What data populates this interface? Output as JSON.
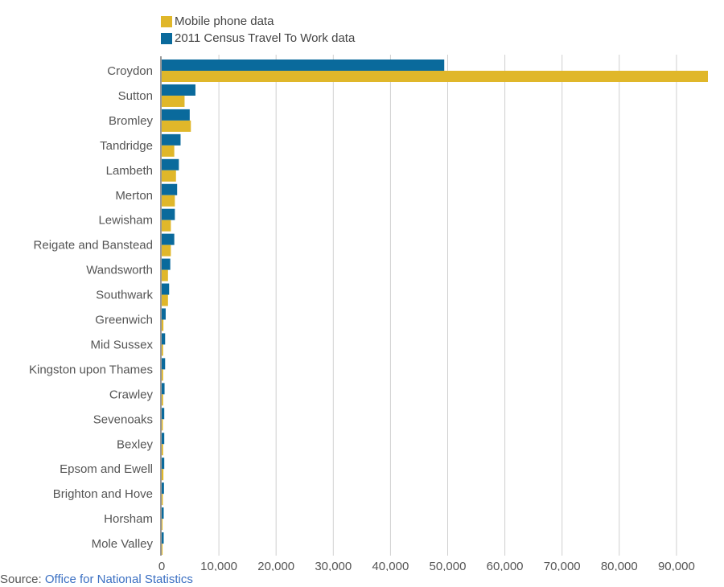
{
  "chart_data": {
    "type": "bar",
    "orientation": "horizontal",
    "categories": [
      "Croydon",
      "Sutton",
      "Bromley",
      "Tandridge",
      "Lambeth",
      "Merton",
      "Lewisham",
      "Reigate and Banstead",
      "Wandsworth",
      "Southwark",
      "Greenwich",
      "Mid Sussex",
      "Kingston upon Thames",
      "Crawley",
      "Sevenoaks",
      "Bexley",
      "Epsom and Ewell",
      "Brighton and Hove",
      "Horsham",
      "Mole Valley"
    ],
    "series": [
      {
        "name": "2011 Census Travel To Work data",
        "color": "#0a6a9c",
        "values": [
          49400,
          5900,
          4900,
          3300,
          3000,
          2700,
          2300,
          2200,
          1500,
          1300,
          700,
          600,
          600,
          500,
          450,
          450,
          450,
          400,
          350,
          350
        ]
      },
      {
        "name": "Mobile phone data",
        "color": "#e0b72a",
        "values": [
          95500,
          4000,
          5100,
          2200,
          2500,
          2300,
          1600,
          1600,
          1100,
          1100,
          300,
          250,
          250,
          250,
          200,
          250,
          300,
          200,
          150,
          150
        ]
      }
    ],
    "xlim": [
      0,
      95500
    ],
    "xticks": [
      0,
      10000,
      20000,
      30000,
      40000,
      50000,
      60000,
      70000,
      80000,
      90000
    ],
    "xtick_labels": [
      "0",
      "10,000",
      "20,000",
      "30,000",
      "40,000",
      "50,000",
      "60,000",
      "70,000",
      "80,000",
      "90,000"
    ],
    "grid": true,
    "legend_position": "top-left"
  },
  "legend": {
    "items": [
      {
        "label": "Mobile phone data",
        "color": "#e0b72a"
      },
      {
        "label": "2011 Census Travel To Work data",
        "color": "#0a6a9c"
      }
    ]
  },
  "source": {
    "prefix": "Source: ",
    "link_text": "Office for National Statistics"
  }
}
